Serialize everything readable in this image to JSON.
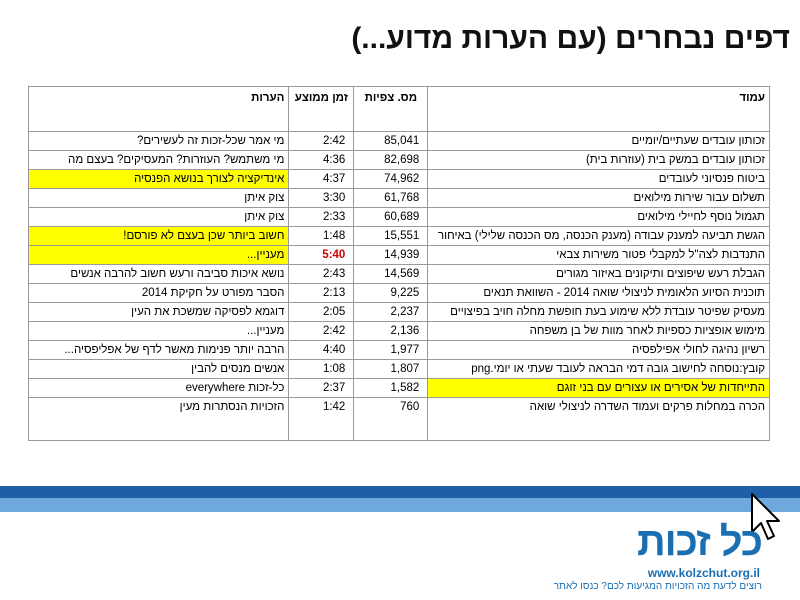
{
  "title": "דפים נבחרים (עם הערות מדוע...)",
  "table": {
    "headers": {
      "page": "עמוד",
      "views": "מס. צפיות",
      "time": "זמן ממוצע",
      "notes": "הערות"
    },
    "rows": [
      {
        "page": "זכותון עובדים שעתיים/יומיים",
        "views": "85,041",
        "time": "2:42",
        "notes": "מי אמר שכל-זכות זה לעשירים?"
      },
      {
        "page": "זכותון עובדים במשק בית (עוזרות בית)",
        "views": "82,698",
        "time": "4:36",
        "notes": "מי משתמש? העוזרות? המעסיקים? בעצם מה"
      },
      {
        "page": "ביטוח פנסיוני לעובדים",
        "views": "74,962",
        "time": "4:37",
        "notes": "אינדיקציה לצורך בנושא הפנסיה"
      },
      {
        "page": "תשלום עבור שירות מילואים",
        "views": "61,768",
        "time": "3:30",
        "notes": "צוק איתן"
      },
      {
        "page": "תגמול נוסף לחיילי מילואים",
        "views": "60,689",
        "time": "2:33",
        "notes": "צוק איתן"
      },
      {
        "page": "הגשת תביעה למענק עבודה (מענק הכנסה, מס הכנסה שלילי) באיחור",
        "views": "15,551",
        "time": "1:48",
        "notes": "חשוב ביותר שכן בעצם לא פורסם!"
      },
      {
        "page": "התנדבות לצה\"ל למקבלי פטור משירות צבאי",
        "views": "14,939",
        "time": "5:40",
        "notes": "מעניין..."
      },
      {
        "page": "הגבלת רעש שיפוצים ותיקונים באיזור מגורים",
        "views": "14,569",
        "time": "2:43",
        "notes": "נושא איכות סביבה ורעש חשוב להרבה אנשים"
      },
      {
        "page": "תוכנית הסיוע הלאומית לניצולי שואה 2014 - השוואת תנאים",
        "views": "9,225",
        "time": "2:13",
        "notes": "הסבר מפורט על חקיקת 2014"
      },
      {
        "page": "מעסיק שפיטר עובדת ללא שימוע בעת חופשת מחלה חויב בפיצויים",
        "views": "2,237",
        "time": "2:05",
        "notes": "דוגמא לפסיקה שמשכת את העין"
      },
      {
        "page": "מימוש אופציות כספיות לאחר מוות של בן משפחה",
        "views": "2,136",
        "time": "2:42",
        "notes": "מעניין..."
      },
      {
        "page": "רשיון נהיגה לחולי אפילפסיה",
        "views": "1,977",
        "time": "4:40",
        "notes": "הרבה יותר פנימות מאשר לדף של אפליפסיה..."
      },
      {
        "page": "קובץ:נוסחה לחישוב גובה דמי הבראה לעובד שעתי או יומי.png",
        "views": "1,807",
        "time": "1:08",
        "notes": "אנשים מנסים להבין"
      },
      {
        "page": "התייחדות של אסירים או עצורים עם בני זוגם",
        "views": "1,582",
        "time": "2:37",
        "notes": "כל-זכות everywhere"
      },
      {
        "page": "הכרה במחלות פרקים ועמוד השדרה לניצולי שואה",
        "views": "760",
        "time": "1:42",
        "notes": "הזכויות הנסתרות מעין"
      }
    ]
  },
  "logo": {
    "name": "כל זכות",
    "url": "www.kolzchut.org.il",
    "tagline": "רוצים לדעת מה הזכויות המגיעות לכם? כנסו לאתר"
  },
  "colors": {
    "highlight": "#ffff00",
    "red_text": "#d00000",
    "band_dark": "#1f5fa8",
    "band_light": "#6fa8dc",
    "logo_blue": "#1a6fb3"
  },
  "icons": [
    "cursor-icon"
  ]
}
